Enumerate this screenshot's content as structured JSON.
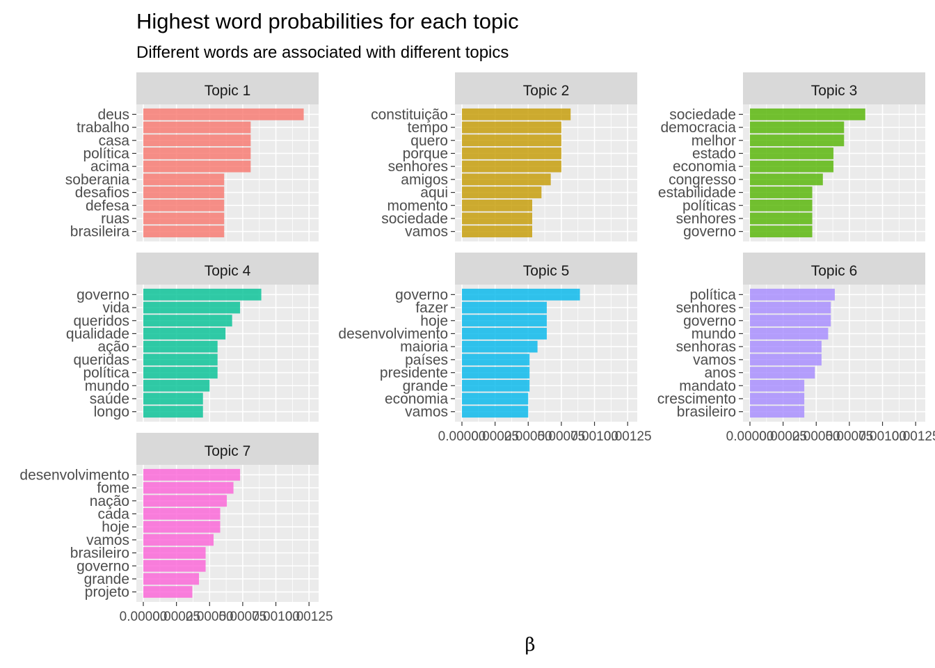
{
  "chart_data": {
    "type": "bar",
    "orientation": "horizontal",
    "layout": "facet_wrap",
    "title": "Highest word probabilities for each topic",
    "subtitle": "Different words are associated with different topics",
    "xlabel": "β",
    "ylabel": "",
    "xlim": [
      0,
      0.00127
    ],
    "x_ticks": [
      0.0,
      0.00025,
      0.0005,
      0.00075,
      0.001,
      0.00125
    ],
    "x_tick_labels": [
      "0.00000",
      "0.00025",
      "0.00050",
      "0.00075",
      "0.00100",
      "0.00125"
    ],
    "grid": true,
    "legend": "none",
    "facets": [
      {
        "name": "Topic 1",
        "color": "#F8766D",
        "words": [
          "deus",
          "trabalho",
          "casa",
          "política",
          "acima",
          "soberania",
          "desafios",
          "defesa",
          "ruas",
          "brasileira"
        ],
        "values": [
          0.00121,
          0.00081,
          0.00081,
          0.00081,
          0.00081,
          0.00061,
          0.00061,
          0.00061,
          0.00061,
          0.00061
        ]
      },
      {
        "name": "Topic 2",
        "color": "#C49A00",
        "words": [
          "constituição",
          "tempo",
          "quero",
          "porque",
          "senhores",
          "amigos",
          "aqui",
          "momento",
          "sociedade",
          "vamos"
        ],
        "values": [
          0.00082,
          0.00075,
          0.00075,
          0.00075,
          0.00075,
          0.00067,
          0.0006,
          0.00053,
          0.00053,
          0.00053
        ]
      },
      {
        "name": "Topic 3",
        "color": "#53B400",
        "words": [
          "sociedade",
          "democracia",
          "melhor",
          "estado",
          "economia",
          "congresso",
          "estabilidade",
          "políticas",
          "senhores",
          "governo"
        ],
        "values": [
          0.00087,
          0.00071,
          0.00071,
          0.00063,
          0.00063,
          0.00055,
          0.00047,
          0.00047,
          0.00047,
          0.00047
        ]
      },
      {
        "name": "Topic 4",
        "color": "#00C094",
        "words": [
          "governo",
          "vida",
          "queridos",
          "qualidade",
          "ação",
          "queridas",
          "política",
          "mundo",
          "saúde",
          "longo"
        ],
        "values": [
          0.00089,
          0.00073,
          0.00067,
          0.00062,
          0.00056,
          0.00056,
          0.00056,
          0.0005,
          0.00045,
          0.00045
        ]
      },
      {
        "name": "Topic 5",
        "color": "#00B6EB",
        "words": [
          "governo",
          "fazer",
          "hoje",
          "desenvolvimento",
          "maioria",
          "países",
          "presidente",
          "grande",
          "economia",
          "vamos"
        ],
        "values": [
          0.00089,
          0.00064,
          0.00064,
          0.00064,
          0.00057,
          0.00051,
          0.00051,
          0.00051,
          0.0005,
          0.0005
        ]
      },
      {
        "name": "Topic 6",
        "color": "#A58AFF",
        "words": [
          "política",
          "senhores",
          "governo",
          "mundo",
          "senhoras",
          "vamos",
          "anos",
          "mandato",
          "crescimento",
          "brasileiro"
        ],
        "values": [
          0.00064,
          0.00061,
          0.00061,
          0.00059,
          0.00054,
          0.00054,
          0.00049,
          0.00041,
          0.00041,
          0.00041
        ]
      },
      {
        "name": "Topic 7",
        "color": "#FB61D7",
        "words": [
          "desenvolvimento",
          "fome",
          "nação",
          "cada",
          "hoje",
          "vamos",
          "brasileiro",
          "governo",
          "grande",
          "projeto"
        ],
        "values": [
          0.00073,
          0.00068,
          0.00063,
          0.00058,
          0.00058,
          0.00053,
          0.00047,
          0.00047,
          0.00042,
          0.00037
        ]
      }
    ]
  }
}
